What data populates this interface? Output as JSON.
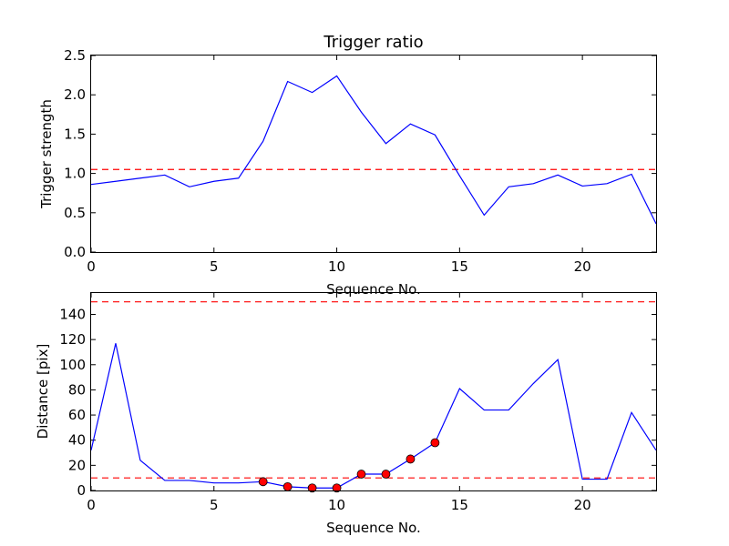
{
  "chart_data": [
    {
      "type": "line",
      "title": "Trigger ratio",
      "xlabel": "Sequence No.",
      "ylabel": "Trigger strength",
      "xlim": [
        0,
        23
      ],
      "ylim": [
        0.0,
        2.5
      ],
      "xticks": [
        0,
        5,
        10,
        15,
        20
      ],
      "xtick_labels": [
        "0",
        "5",
        "10",
        "15",
        "20"
      ],
      "yticks": [
        0.0,
        0.5,
        1.0,
        1.5,
        2.0,
        2.5
      ],
      "ytick_labels": [
        "0.0",
        "0.5",
        "1.0",
        "1.5",
        "2.0",
        "2.5"
      ],
      "grid": false,
      "series": [
        {
          "color": "#0000ff",
          "x": [
            0,
            1,
            2,
            3,
            4,
            5,
            6,
            7,
            8,
            9,
            10,
            11,
            12,
            13,
            14,
            15,
            16,
            17,
            18,
            19,
            20,
            21,
            22,
            23
          ],
          "values": [
            0.86,
            0.9,
            0.94,
            0.98,
            0.83,
            0.9,
            0.94,
            1.41,
            2.17,
            2.03,
            2.24,
            1.78,
            1.38,
            1.63,
            1.49,
            0.97,
            0.47,
            0.83,
            0.87,
            0.98,
            0.84,
            0.87,
            0.99,
            0.36
          ]
        }
      ],
      "hlines": [
        {
          "y": 1.05,
          "color": "#ff0000",
          "style": "dashed"
        }
      ]
    },
    {
      "type": "line",
      "title": "",
      "xlabel": "Sequence No.",
      "ylabel": "Distance [pix]",
      "xlim": [
        0,
        23
      ],
      "ylim": [
        0,
        157
      ],
      "xticks": [
        0,
        5,
        10,
        15,
        20
      ],
      "xtick_labels": [
        "0",
        "5",
        "10",
        "15",
        "20"
      ],
      "yticks": [
        0,
        20,
        40,
        60,
        80,
        100,
        120,
        140
      ],
      "ytick_labels": [
        "0",
        "20",
        "40",
        "60",
        "80",
        "100",
        "120",
        "140"
      ],
      "grid": false,
      "series": [
        {
          "color": "#0000ff",
          "x": [
            0,
            1,
            2,
            3,
            4,
            5,
            6,
            7,
            8,
            9,
            10,
            11,
            12,
            13,
            14,
            15,
            16,
            17,
            18,
            19,
            20,
            21,
            22,
            23
          ],
          "values": [
            32,
            117,
            24,
            8,
            8,
            6,
            6,
            7,
            3,
            2,
            2,
            13,
            13,
            25,
            38,
            81,
            64,
            64,
            85,
            104,
            9,
            9,
            62,
            32
          ]
        }
      ],
      "markers": {
        "color": "#ff0000",
        "x": [
          7,
          8,
          9,
          10,
          11,
          12,
          13,
          14
        ],
        "values": [
          7,
          3,
          2,
          2,
          13,
          13,
          25,
          38
        ]
      },
      "hlines": [
        {
          "y": 150,
          "color": "#ff0000",
          "style": "dashed"
        },
        {
          "y": 10,
          "color": "#ff0000",
          "style": "dashed"
        }
      ]
    }
  ]
}
